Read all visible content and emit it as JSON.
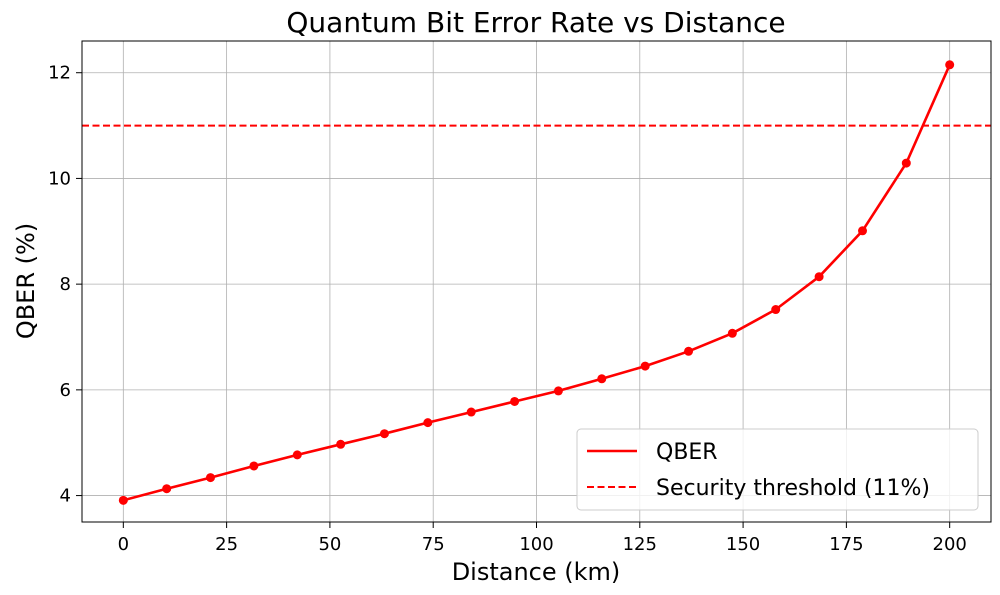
{
  "chart_data": {
    "type": "line",
    "title": "Quantum Bit Error Rate vs Distance",
    "xlabel": "Distance (km)",
    "ylabel": "QBER (%)",
    "xlim": [
      -10,
      210
    ],
    "ylim": [
      3.5,
      12.6
    ],
    "xticks": [
      0,
      25,
      50,
      75,
      100,
      125,
      150,
      175,
      200
    ],
    "yticks": [
      4,
      6,
      8,
      10,
      12
    ],
    "grid": true,
    "legend_position": "lower-right",
    "series": [
      {
        "name": "QBER",
        "color": "#ff0000",
        "style": "solid-with-circle-markers",
        "x": [
          0,
          10.5,
          21.1,
          31.6,
          42.1,
          52.6,
          63.2,
          73.7,
          84.2,
          94.7,
          105.3,
          115.8,
          126.3,
          136.8,
          147.4,
          157.9,
          168.4,
          178.9,
          189.5,
          200
        ],
        "y": [
          3.91,
          4.13,
          4.34,
          4.56,
          4.77,
          4.97,
          5.17,
          5.38,
          5.58,
          5.78,
          5.98,
          6.21,
          6.45,
          6.73,
          7.07,
          7.52,
          8.14,
          9.01,
          10.29,
          12.15
        ]
      }
    ],
    "threshold": {
      "name": "Security threshold (11%)",
      "value": 11,
      "color": "#ff0000",
      "style": "dashed"
    }
  }
}
